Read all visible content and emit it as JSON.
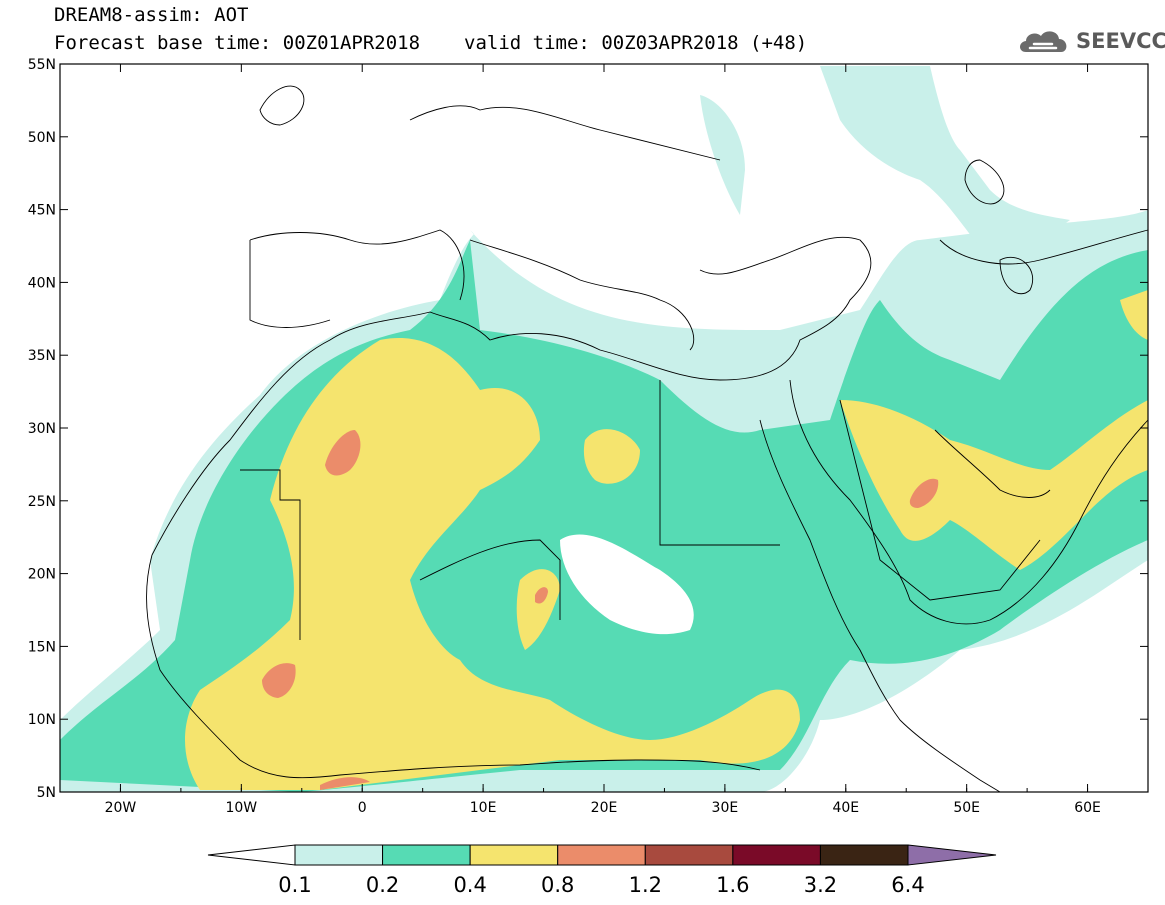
{
  "title": {
    "line1": "DREAM8-assim: AOT",
    "base": "Forecast base time: 00Z01APR2018",
    "valid": "valid time: 00Z03APR2018 (+48)"
  },
  "logo": {
    "text": "SEEVCCC",
    "icon": "cloud-icon"
  },
  "map": {
    "projection": "lat-lon",
    "lon_range": [
      -25,
      65
    ],
    "lat_range": [
      5,
      55
    ],
    "lat_labels": [
      "5N",
      "10N",
      "15N",
      "20N",
      "25N",
      "30N",
      "35N",
      "40N",
      "45N",
      "50N",
      "55N"
    ],
    "lon_labels": [
      "20W",
      "10W",
      "0",
      "10E",
      "20E",
      "30E",
      "40E",
      "50E",
      "60E"
    ],
    "variable": "AOT"
  },
  "colorbar": {
    "levels": [
      "0.1",
      "0.2",
      "0.4",
      "0.8",
      "1.2",
      "1.6",
      "3.2",
      "6.4"
    ],
    "colors": [
      "#ffffff",
      "#c9f0ea",
      "#56dbb4",
      "#f5e46e",
      "#eb8c6a",
      "#a84a3e",
      "#7a0a28",
      "#3a2414",
      "#8e6ea8"
    ]
  }
}
